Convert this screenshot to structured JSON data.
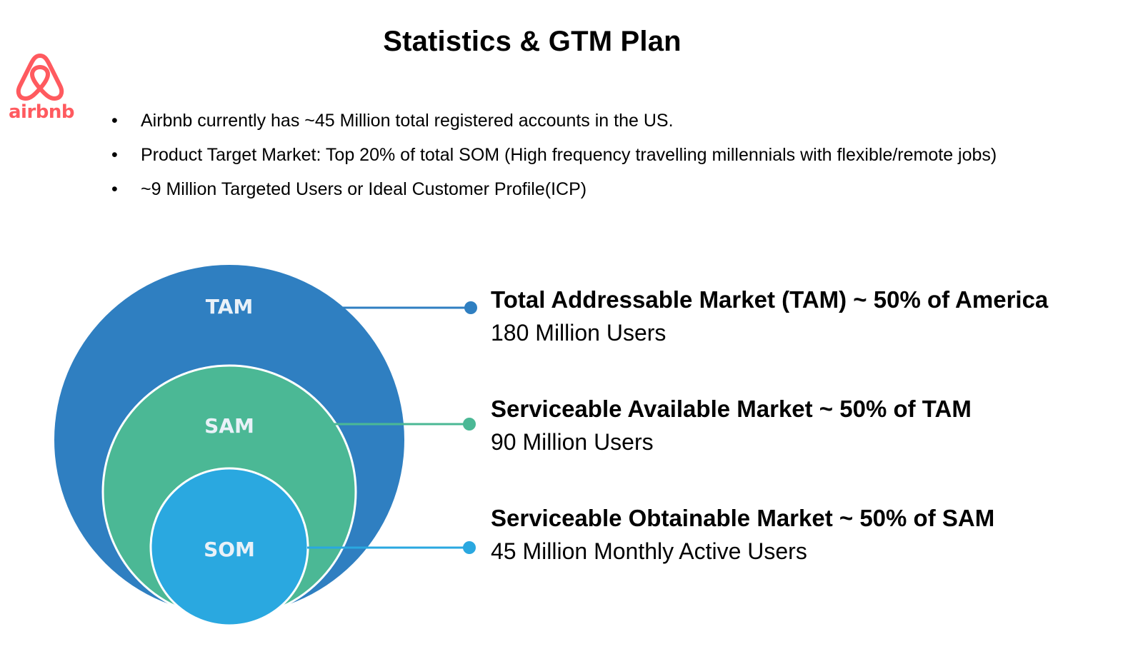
{
  "title": "Statistics & GTM Plan",
  "logo": {
    "icon": "airbnb-belo-icon",
    "wordmark": "airbnb",
    "color": "#ff5a5f"
  },
  "bullet_symbol": "•",
  "bullets": [
    "Airbnb currently has ~45 Million total registered accounts in the US.",
    "Product Target Market: Top 20% of total SOM (High frequency travelling millennials with flexible/remote jobs)",
    "~9 Million Targeted Users or Ideal Customer Profile(ICP)"
  ],
  "markets": [
    {
      "abbr": "TAM",
      "heading": "Total Addressable Market (TAM) ~ 50% of America",
      "value": "180 Million Users",
      "color": "#2f7fc1"
    },
    {
      "abbr": "SAM",
      "heading": "Serviceable Available Market ~ 50% of TAM",
      "value": "90 Million Users",
      "color": "#4bb895"
    },
    {
      "abbr": "SOM",
      "heading": "Serviceable Obtainable Market ~ 50% of SAM",
      "value": "45 Million Monthly Active Users",
      "color": "#2aa8e0"
    }
  ]
}
